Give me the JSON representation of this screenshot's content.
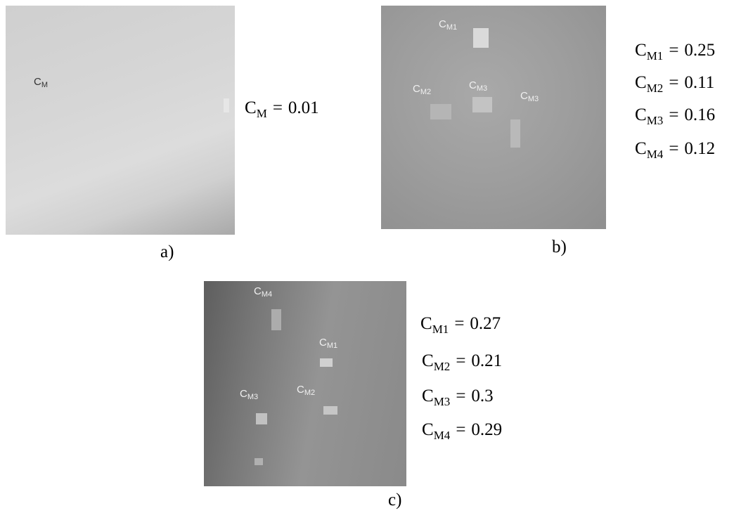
{
  "panels": [
    {
      "caption": "a)",
      "image_labels": [
        {
          "base": "C",
          "sub": "M"
        }
      ],
      "equations": [
        {
          "base": "C",
          "sub": "M",
          "op": "=",
          "value": "0.01"
        }
      ]
    },
    {
      "caption": "b)",
      "image_labels": [
        {
          "base": "C",
          "sub": "M1"
        },
        {
          "base": "C",
          "sub": "M2"
        },
        {
          "base": "C",
          "sub": "M3"
        },
        {
          "base": "C",
          "sub": "M3"
        }
      ],
      "equations": [
        {
          "base": "C",
          "sub": "M1",
          "op": "=",
          "value": "0.25"
        },
        {
          "base": "C",
          "sub": "M2",
          "op": "=",
          "value": "0.11"
        },
        {
          "base": "C",
          "sub": "M3",
          "op": "=",
          "value": "0.16"
        },
        {
          "base": "C",
          "sub": "M4",
          "op": "=",
          "value": "0.12"
        }
      ]
    },
    {
      "caption": "c)",
      "image_labels": [
        {
          "base": "C",
          "sub": "M4"
        },
        {
          "base": "C",
          "sub": "M1"
        },
        {
          "base": "C",
          "sub": "M3"
        },
        {
          "base": "C",
          "sub": "M2"
        }
      ],
      "equations": [
        {
          "base": "C",
          "sub": "M1",
          "op": "=",
          "value": "0.27"
        },
        {
          "base": "C",
          "sub": "M2",
          "op": "=",
          "value": "0.21"
        },
        {
          "base": "C",
          "sub": "M3",
          "op": "=",
          "value": "0.3"
        },
        {
          "base": "C",
          "sub": "M4",
          "op": "=",
          "value": "0.29"
        }
      ]
    }
  ]
}
